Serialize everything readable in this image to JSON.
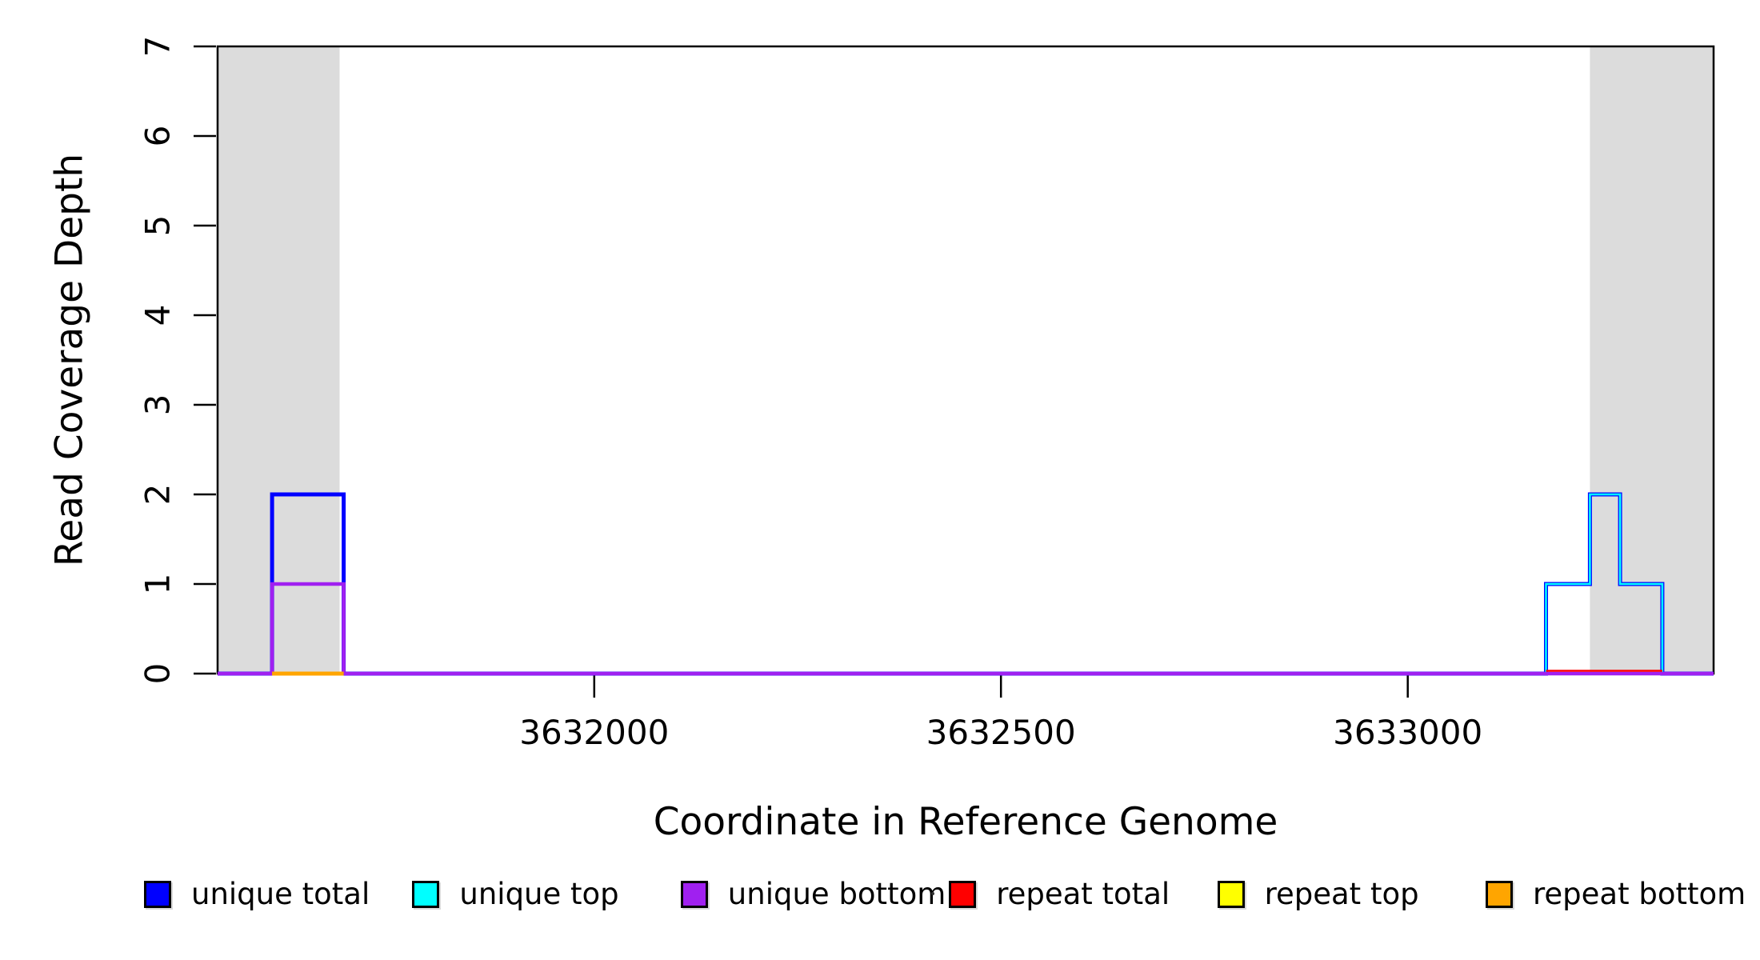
{
  "figure": {
    "background": "#ffffff",
    "plot_border_color": "#000000",
    "highlight_band_color": "#DCDCDC"
  },
  "chart_data": {
    "type": "line",
    "subtype": "step-coverage",
    "title": "",
    "xlabel": "Coordinate in Reference Genome",
    "ylabel": "Read Coverage Depth",
    "xlim": [
      3631537,
      3633376
    ],
    "ylim": [
      0,
      7
    ],
    "x_tick_values": [
      3632000,
      3632500,
      3633000
    ],
    "x_tick_labels": [
      "3632000",
      "3632500",
      "3633000"
    ],
    "y_tick_values": [
      0,
      1,
      2,
      3,
      4,
      5,
      6,
      7
    ],
    "y_tick_labels": [
      "0",
      "1",
      "2",
      "3",
      "4",
      "5",
      "6",
      "7"
    ],
    "grid": false,
    "legend_position": "bottom",
    "highlight_regions": [
      {
        "name": "left-gray-band",
        "start": 3631537,
        "end": 3631687,
        "color": "#DCDCDC"
      },
      {
        "name": "right-gray-band",
        "start": 3633224,
        "end": 3633376,
        "color": "#DCDCDC"
      }
    ],
    "series": [
      {
        "name": "unique total",
        "color": "#0000FF",
        "width": 5,
        "baseline": "full",
        "segments": [
          {
            "start": 3631604,
            "end": 3631692,
            "depth": 2
          },
          {
            "start": 3633170,
            "end": 3633224,
            "depth": 1
          },
          {
            "start": 3633224,
            "end": 3633261,
            "depth": 2
          },
          {
            "start": 3633261,
            "end": 3633313,
            "depth": 1
          }
        ]
      },
      {
        "name": "unique top",
        "color": "#00FFFF",
        "width": 2.5,
        "baseline": "full",
        "segments": [
          {
            "start": 3633170,
            "end": 3633224,
            "depth": 1
          },
          {
            "start": 3633224,
            "end": 3633261,
            "depth": 2
          },
          {
            "start": 3633261,
            "end": 3633313,
            "depth": 1
          }
        ]
      },
      {
        "name": "unique bottom",
        "color": "#A020F0",
        "width": 4.5,
        "baseline": "full",
        "segments": [
          {
            "start": 3631604,
            "end": 3631692,
            "depth": 1
          }
        ]
      },
      {
        "name": "repeat total",
        "color": "#FF0000",
        "width": 2.5,
        "baseline": [
          3633170,
          3633313
        ],
        "offset": -3.5,
        "segments": []
      },
      {
        "name": "repeat top",
        "color": "#FFFF00",
        "width": 4,
        "baseline": "none",
        "segments": []
      },
      {
        "name": "repeat bottom",
        "color": "#FFA500",
        "width": 5,
        "baseline": [
          3631604,
          3631692
        ],
        "offset": 0,
        "segments": []
      }
    ]
  }
}
